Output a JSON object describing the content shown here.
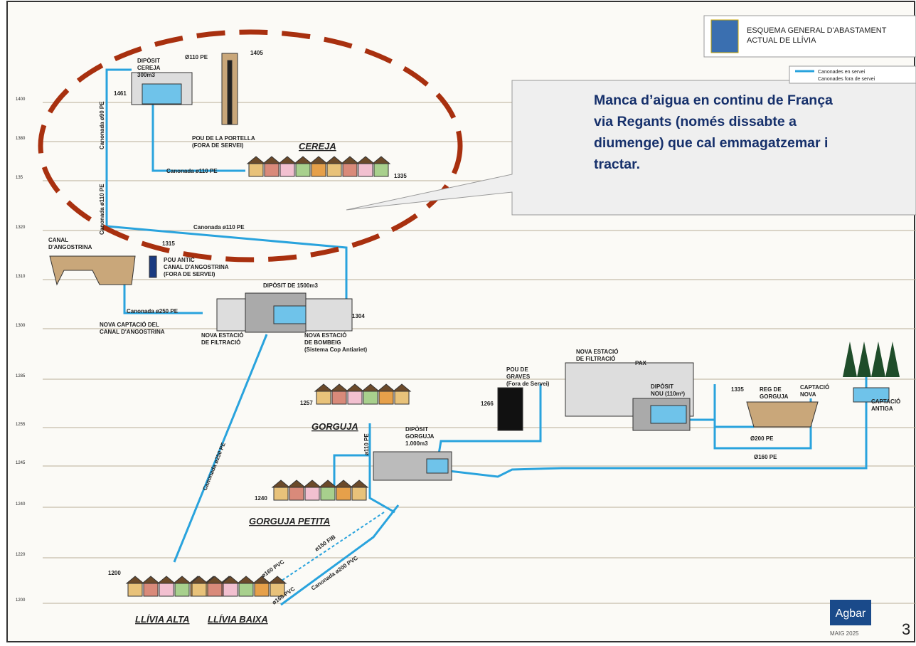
{
  "header": {
    "title": [
      "ESQUEMA GENERAL D'ABASTAMENT",
      "ACTUAL DE LLÍVIA"
    ]
  },
  "legend": [
    "Canonades en servei",
    "Canonades fora de servei"
  ],
  "callout": "Manca d’aigua en continu de França via Regants  (només dissabte a diumenge) que cal emmagatzemar i tractar.",
  "elevations": [
    "1400",
    "1380",
    "135",
    "1320",
    "1310",
    "1300",
    "1285",
    "1255",
    "1245",
    "1240",
    "1220",
    "1200"
  ],
  "labels": {
    "cereja_tank": [
      "DIPÒSIT",
      "CEREJA",
      "300m3"
    ],
    "pipe_110_top": "Ø110 PE",
    "code_1405": "1405",
    "code_1461": "1461",
    "pou_portella": [
      "POU DE LA PORTELLA",
      "(FORA DE SERVEI)"
    ],
    "cereja": "CEREJA",
    "pipe_cereja": "Canonada ø110 PE",
    "code_1335": "1335",
    "pipe_v90": "Canonada ø90 PE",
    "pipe_v110": "Canonada ø110 PE",
    "pipe_110_diag": "Canonada ø110 PE",
    "canal": [
      "CANAL",
      "D'ANGOSTRINA"
    ],
    "code_1315": "1315",
    "pou_antic": [
      "POU ANTIC",
      "CANAL D'ANGOSTRINA",
      "(FORA DE SERVEI)"
    ],
    "diposit_1500": "DIPÒSIT DE 1500m3",
    "pipe_250": "Canonada ø250 PE",
    "nova_captacio": [
      "NOVA CAPTACIÓ DEL",
      "CANAL D'ANGOSTRINA"
    ],
    "filtracio_1": [
      "NOVA ESTACIÓ",
      "DE FILTRACIÓ"
    ],
    "bombeig": [
      "NOVA ESTACIÓ",
      "DE BOMBEIG",
      "(Sistema Cop Antiariet)"
    ],
    "code_1304": "1304",
    "pipe_250_diag": "Canonada ø250 PE",
    "filtracio_2": [
      "NOVA ESTACIÓ",
      "DE FILTRACIÓ"
    ],
    "pax": "PAX",
    "pou_graves": [
      "POU DE",
      "GRAVES",
      "(Fora de Servei)"
    ],
    "diposit_nou": [
      "DIPÒSIT",
      "NOU (110m³)"
    ],
    "code_1335b": "1335",
    "reg_gorguja": [
      "REG DE",
      "GORGUJA"
    ],
    "captacio_nova": [
      "CAPTACIÓ",
      "NOVA"
    ],
    "captacio_antiga": [
      "CAPTACIÓ",
      "ANTIGA"
    ],
    "code_1266": "1266",
    "code_1257": "1257",
    "gorguja": "GORGUJA",
    "diposit_gorguja": [
      "DIPÒSIT",
      "GORGUJA",
      "1.000m3"
    ],
    "pipe_v110b": "ø110 PE",
    "pipe_200": "Ø200 PE",
    "pipe_160": "Ø160 PE",
    "code_1240": "1240",
    "gorguja_petita": "GORGUJA PETITA",
    "pipe_150fib": "ø150 FIB",
    "pipe_200pvc": "Canonada ø200 PVC",
    "pipe_160pvc_a": "ø160 PVC",
    "pipe_160pvc_b": "ø160 PVC",
    "code_1200": "1200",
    "llivia_alta": "LLÍVIA ALTA",
    "llivia_baixa": "LLÍVIA BAIXA"
  },
  "footer": {
    "brand": "Agbar",
    "date": "MAIG 2025",
    "page": "3"
  }
}
